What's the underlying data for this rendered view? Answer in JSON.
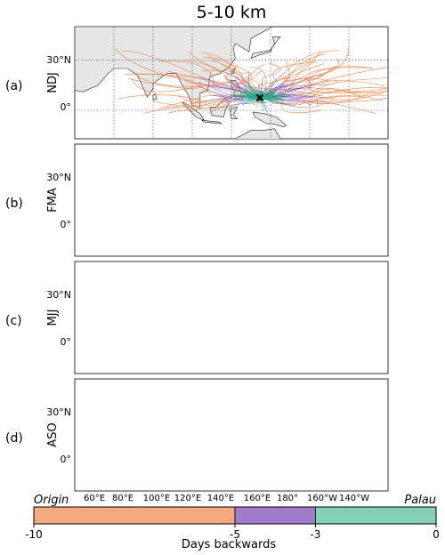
{
  "title": "5-10 km",
  "panels": [
    {
      "letter": "(a)",
      "season": "NDJ"
    },
    {
      "letter": "(b)",
      "season": "FMA"
    },
    {
      "letter": "(c)",
      "season": "MJJ"
    },
    {
      "letter": "(d)",
      "season": "ASO"
    }
  ],
  "lat_labels": [
    "30°N",
    "0°"
  ],
  "lon_labels": [
    "60°E",
    "80°E",
    "100°E",
    "120°E",
    "140°E",
    "160°E",
    "180°",
    "160°W",
    "140°W"
  ],
  "lon_values": [
    60,
    80,
    100,
    120,
    140,
    160,
    180,
    -160,
    -140
  ],
  "lat_values": [
    30,
    0
  ],
  "extent": {
    "lon_min": 40,
    "lon_max": 200,
    "lat_min": -17,
    "lat_max": 50
  },
  "target": {
    "name": "Palau",
    "lon": 134.5,
    "lat": 7.5
  },
  "colorbar": {
    "left_label": "Origin",
    "right_label": "Palau",
    "axis_label": "Days backwards",
    "ticks": [
      "-10",
      "-5",
      "-3",
      "0"
    ],
    "segments": [
      {
        "from": -10,
        "to": -5,
        "color": "#f4a981"
      },
      {
        "from": -5,
        "to": -3,
        "color": "#9f7ccb"
      },
      {
        "from": -3,
        "to": 0,
        "color": "#84d1b5"
      }
    ]
  },
  "colors": {
    "orange": "#e8844a",
    "purple": "#8a55c4",
    "teal": "#2aa88a",
    "land": "#e6e6e6"
  }
}
